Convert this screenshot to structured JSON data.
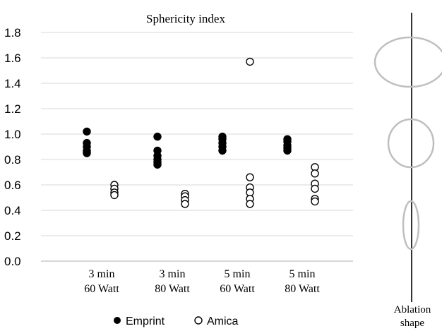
{
  "chart_data": {
    "type": "scatter",
    "title": "Sphericity index",
    "xlabel": "",
    "ylabel": "",
    "ylim": [
      0,
      1.8
    ],
    "yticks": [
      "0.0",
      "0.2",
      "0.4",
      "0.6",
      "0.8",
      "1.0",
      "1.2",
      "1.4",
      "1.6",
      "1.8"
    ],
    "grid": true,
    "legend_position": "bottom",
    "categories": [
      [
        "3 min",
        "60 Watt"
      ],
      [
        "3 min",
        "80 Watt"
      ],
      [
        "5 min",
        "60 Watt"
      ],
      [
        "5 min",
        "80 Watt"
      ]
    ],
    "series": [
      {
        "name": "Emprint",
        "marker": "filled-circle",
        "color": "#000000",
        "points": [
          [
            1.02,
            0.93,
            0.9,
            0.87,
            0.86,
            0.85
          ],
          [
            0.98,
            0.87,
            0.83,
            0.8,
            0.78,
            0.76
          ],
          [
            0.98,
            0.96,
            0.93,
            0.9,
            0.87
          ],
          [
            0.96,
            0.94,
            0.91,
            0.89,
            0.87
          ]
        ]
      },
      {
        "name": "Amica",
        "marker": "open-circle",
        "color": "#000000",
        "points": [
          [
            0.6,
            0.57,
            0.54,
            0.52
          ],
          [
            0.53,
            0.51,
            0.48,
            0.45
          ],
          [
            1.57,
            0.66,
            0.58,
            0.54,
            0.49,
            0.45
          ],
          [
            0.74,
            0.69,
            0.61,
            0.57,
            0.49,
            0.47
          ]
        ]
      }
    ]
  },
  "side_panel": {
    "label_line1": "Ablation",
    "label_line2": "shape",
    "ellipse_color": "#bfbfbf"
  }
}
